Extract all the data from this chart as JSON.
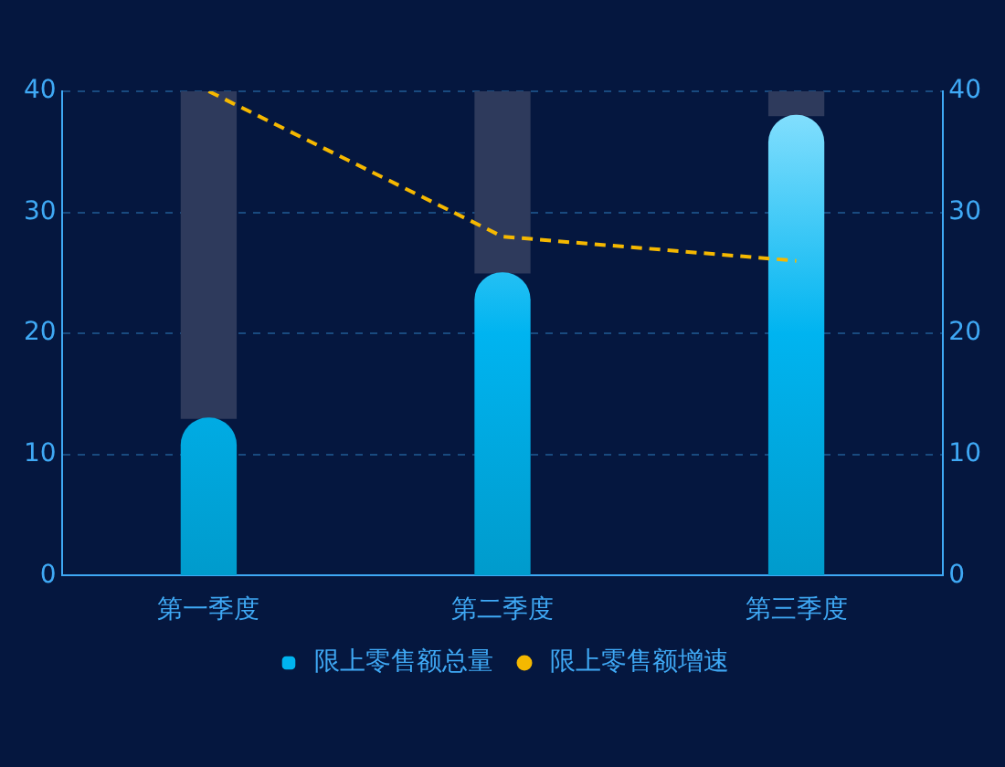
{
  "chart_data": {
    "type": "bar",
    "categories": [
      "第一季度",
      "第二季度",
      "第三季度"
    ],
    "stacked": true,
    "series": [
      {
        "name": "限上零售额总量",
        "color": "#00b4f0",
        "values": [
          13,
          25,
          38
        ]
      },
      {
        "color": "#2e3a5c",
        "values": [
          27,
          15,
          2
        ]
      },
      {
        "type": "line",
        "name": "限上零售额增速",
        "color": "#f5b800",
        "axis": "y2",
        "line_style": "dashed",
        "marker": "none",
        "values": [
          40,
          28,
          26
        ]
      }
    ],
    "ylim": [
      0,
      40
    ],
    "yticks": [
      0,
      10,
      20,
      30,
      40
    ],
    "y2lim": [
      0,
      40
    ],
    "y2ticks": [
      0,
      10,
      20,
      30,
      40
    ],
    "grid": "y",
    "legend": "bottom"
  }
}
